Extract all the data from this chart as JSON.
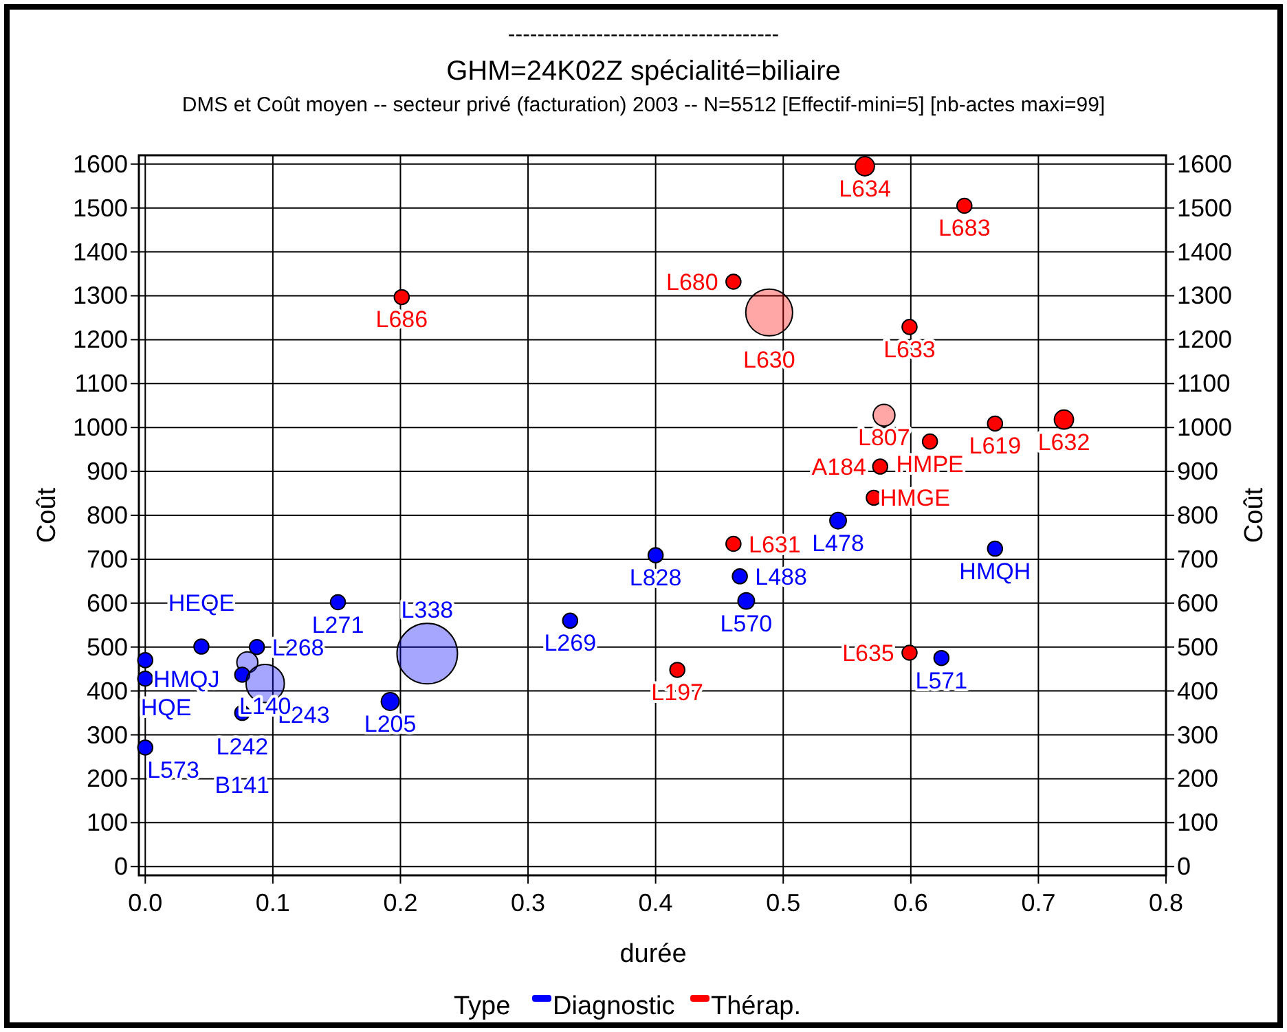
{
  "chart_data": {
    "type": "bubble",
    "title": "GHM=24K02Z  spécialité=biliaire",
    "subtitle": "DMS et Coût moyen -- secteur privé (facturation) 2003 --  N=5512  [Effectif-mini=5] [nb-actes maxi=99]",
    "xlabel": "durée",
    "ylabel": "Coût",
    "y2label": "Coût",
    "legend_title": "Type",
    "legend": "bottom",
    "grid": true,
    "xlim": [
      -0.005,
      0.8
    ],
    "ylim": [
      -20,
      1620
    ],
    "y2lim": [
      -20,
      1620
    ],
    "xticks": [
      {
        "value": 0,
        "label": "0.0"
      },
      {
        "value": 0.1,
        "label": "0.1"
      },
      {
        "value": 0.2,
        "label": "0.2"
      },
      {
        "value": 0.3,
        "label": "0.3"
      },
      {
        "value": 0.4,
        "label": "0.4"
      },
      {
        "value": 0.5,
        "label": "0.5"
      },
      {
        "value": 0.6,
        "label": "0.6"
      },
      {
        "value": 0.7,
        "label": "0.7"
      },
      {
        "value": 0.8,
        "label": "0.8"
      }
    ],
    "yticks": [
      0,
      100,
      200,
      300,
      400,
      500,
      600,
      700,
      800,
      900,
      1000,
      1100,
      1200,
      1300,
      1400,
      1500,
      1600
    ],
    "y2ticks": [
      0,
      100,
      200,
      300,
      400,
      500,
      600,
      700,
      800,
      900,
      1000,
      1100,
      1200,
      1300,
      1400,
      1500,
      1600
    ],
    "series": [
      {
        "name": "Diagnostic",
        "color": "#0000ff",
        "x": [
          0.0,
          0.0,
          0.0,
          0.044,
          0.0875,
          0.08,
          0.076,
          0.094,
          0.076,
          0.192,
          0.151,
          0.221,
          0.333,
          0.4,
          0.466,
          0.471,
          0.543,
          0.666,
          0.624
        ],
        "values": [
          470,
          428,
          271,
          501,
          500,
          465,
          437,
          417,
          350,
          376,
          602,
          485,
          560,
          709,
          661,
          605,
          788,
          724,
          475
        ],
        "sizes": [
          0.06,
          0.06,
          0.06,
          0.06,
          0.06,
          0.12,
          0.06,
          0.4,
          0.06,
          0.087,
          0.06,
          1,
          0.06,
          0.06,
          0.06,
          0.074,
          0.074,
          0.06,
          0.06
        ]
      },
      {
        "name": "Thérap.",
        "color": "#ff0000",
        "x": [
          0.201,
          0.461,
          0.489,
          0.461,
          0.417,
          0.564,
          0.642,
          0.599,
          0.579,
          0.666,
          0.72,
          0.615,
          0.576,
          0.571,
          0.599
        ],
        "values": [
          1297,
          1332,
          1262,
          735,
          448,
          1595,
          1505,
          1229,
          1028,
          1009,
          1018,
          968,
          911,
          840,
          487
        ],
        "sizes": [
          0.06,
          0.06,
          0.6,
          0.06,
          0.06,
          0.1,
          0.06,
          0.06,
          0.13,
          0.06,
          0.1,
          0.06,
          0.06,
          0.06,
          0.06
        ]
      }
    ],
    "annotations": [
      "-------------------------------------",
      {
        "text": "HQE",
        "x": 0.0,
        "y": 470
      },
      {
        "text": "HMQJ",
        "x": 0.0,
        "y": 428
      },
      {
        "text": "L573",
        "x": 0.0,
        "y": 271
      },
      {
        "text": "HEQE",
        "x": 0.044,
        "y": 501
      },
      {
        "text": "L268",
        "x": 0.0875,
        "y": 500
      },
      {
        "text": "L243",
        "x": 0.08,
        "y": 465
      },
      {
        "text": "L242",
        "x": 0.076,
        "y": 437
      },
      {
        "text": "L140",
        "x": 0.094,
        "y": 417
      },
      {
        "text": "B141",
        "x": 0.076,
        "y": 350
      },
      {
        "text": "L205",
        "x": 0.192,
        "y": 376
      },
      {
        "text": "L271",
        "x": 0.151,
        "y": 602
      },
      {
        "text": "L338",
        "x": 0.221,
        "y": 485
      },
      {
        "text": "L269",
        "x": 0.333,
        "y": 560
      },
      {
        "text": "L828",
        "x": 0.4,
        "y": 709
      },
      {
        "text": "L488",
        "x": 0.466,
        "y": 661
      },
      {
        "text": "L570",
        "x": 0.471,
        "y": 605
      },
      {
        "text": "L478",
        "x": 0.543,
        "y": 788
      },
      {
        "text": "HMQH",
        "x": 0.666,
        "y": 724
      },
      {
        "text": "L571",
        "x": 0.624,
        "y": 475
      },
      {
        "text": "L686",
        "x": 0.201,
        "y": 1297
      },
      {
        "text": "L680",
        "x": 0.461,
        "y": 1332
      },
      {
        "text": "L630",
        "x": 0.489,
        "y": 1262
      },
      {
        "text": "L631",
        "x": 0.461,
        "y": 735
      },
      {
        "text": "L197",
        "x": 0.417,
        "y": 448
      },
      {
        "text": "L634",
        "x": 0.564,
        "y": 1595
      },
      {
        "text": "L683",
        "x": 0.642,
        "y": 1505
      },
      {
        "text": "L633",
        "x": 0.599,
        "y": 1229
      },
      {
        "text": "L807",
        "x": 0.579,
        "y": 1028
      },
      {
        "text": "L619",
        "x": 0.666,
        "y": 1009
      },
      {
        "text": "L632",
        "x": 0.72,
        "y": 1018
      },
      {
        "text": "HMPE",
        "x": 0.615,
        "y": 968
      },
      {
        "text": "A184",
        "x": 0.576,
        "y": 911
      },
      {
        "text": "HMGE",
        "x": 0.571,
        "y": 840
      },
      {
        "text": "L635",
        "x": 0.599,
        "y": 487
      }
    ]
  }
}
